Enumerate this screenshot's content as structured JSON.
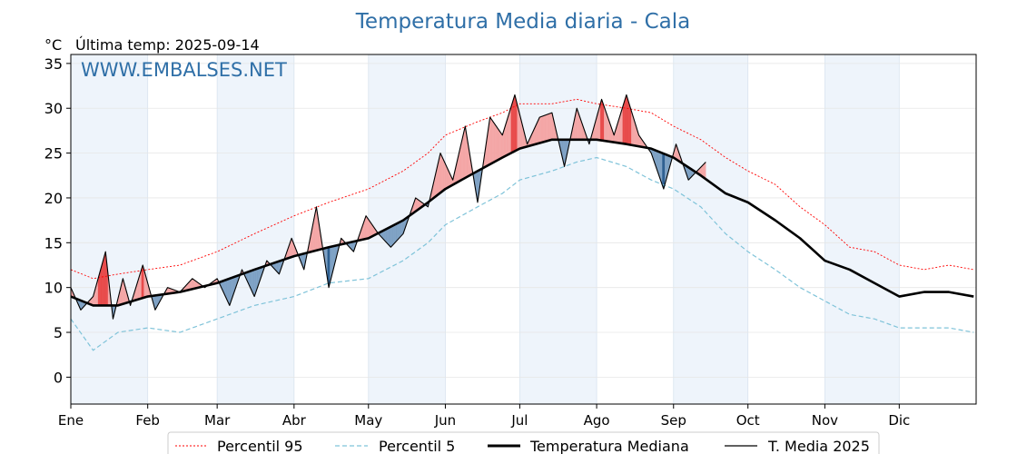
{
  "header": {
    "title": "Temperatura Media diaria - Cala",
    "unit": "°C",
    "last_temp": "Última temp: 2025-09-14",
    "watermark": "WWW.EMBALSES.NET"
  },
  "legend": {
    "p95": "Percentil 95",
    "p5": "Percentil 5",
    "median": "Temperatura Mediana",
    "current": "T. Media 2025"
  },
  "colors": {
    "p95": "#ff0000",
    "p5": "#7fc3d9",
    "median": "#000000",
    "current": "#000000",
    "above_fill": "#f4a6a6",
    "above_strong": "#e84a4a",
    "below_fill": "#7ea1c4",
    "below_strong": "#2a5d8f",
    "month_band": "#eef4fb",
    "title": "#2f6fa7"
  },
  "chart_data": {
    "type": "line",
    "title": "Temperatura Media diaria - Cala",
    "ylabel": "°C",
    "ylim": [
      -3,
      36
    ],
    "xlim": [
      1,
      366
    ],
    "yticks": [
      0,
      5,
      10,
      15,
      20,
      25,
      30,
      35
    ],
    "months": [
      "Ene",
      "Feb",
      "Mar",
      "Abr",
      "May",
      "Jun",
      "Jul",
      "Ago",
      "Sep",
      "Oct",
      "Nov",
      "Dic"
    ],
    "month_start_days": [
      1,
      32,
      60,
      91,
      121,
      152,
      182,
      213,
      244,
      274,
      305,
      335
    ],
    "grid": true,
    "legend_position": "bottom",
    "series": [
      {
        "name": "Percentil 95",
        "style": "dotted",
        "x": [
          1,
          10,
          20,
          32,
          45,
          60,
          75,
          91,
          105,
          121,
          135,
          145,
          152,
          165,
          175,
          182,
          195,
          205,
          213,
          225,
          235,
          244,
          255,
          265,
          274,
          285,
          295,
          305,
          315,
          325,
          335,
          345,
          355,
          365
        ],
        "y": [
          12,
          11,
          11.5,
          12,
          12.5,
          14,
          16,
          18,
          19.5,
          21,
          23,
          25,
          27,
          28.5,
          29.5,
          30.5,
          30.5,
          31,
          30.5,
          30,
          29.5,
          28,
          26.5,
          24.5,
          23,
          21.5,
          19,
          17,
          14.5,
          14,
          12.5,
          12,
          12.5,
          12
        ]
      },
      {
        "name": "Percentil 5",
        "style": "dashed",
        "x": [
          1,
          10,
          20,
          32,
          45,
          60,
          75,
          91,
          105,
          121,
          135,
          145,
          152,
          165,
          175,
          182,
          195,
          205,
          213,
          225,
          235,
          244,
          255,
          265,
          274,
          285,
          295,
          305,
          315,
          325,
          335,
          345,
          355,
          365
        ],
        "y": [
          6.5,
          3,
          5,
          5.5,
          5,
          6.5,
          8,
          9,
          10.5,
          11,
          13,
          15,
          17,
          19,
          20.5,
          22,
          23,
          24,
          24.5,
          23.5,
          22,
          21,
          19,
          16,
          14,
          12,
          10,
          8.5,
          7,
          6.5,
          5.5,
          5.5,
          5.5,
          5
        ]
      },
      {
        "name": "Temperatura Mediana",
        "style": "solid-thick",
        "x": [
          1,
          10,
          20,
          32,
          45,
          60,
          75,
          91,
          105,
          121,
          135,
          145,
          152,
          165,
          175,
          182,
          195,
          205,
          213,
          225,
          235,
          244,
          255,
          265,
          274,
          285,
          295,
          305,
          315,
          325,
          335,
          345,
          355,
          365
        ],
        "y": [
          9,
          8,
          8,
          9,
          9.5,
          10.5,
          12,
          13.5,
          14.5,
          15.5,
          17.5,
          19.5,
          21,
          23,
          24.5,
          25.5,
          26.5,
          26.5,
          26.5,
          26,
          25.5,
          24.5,
          22.5,
          20.5,
          19.5,
          17.5,
          15.5,
          13,
          12,
          10.5,
          9,
          9.5,
          9.5,
          9
        ]
      },
      {
        "name": "T. Media 2025",
        "style": "solid-thin",
        "x": [
          1,
          5,
          10,
          15,
          18,
          22,
          25,
          30,
          35,
          40,
          45,
          50,
          55,
          60,
          65,
          70,
          75,
          80,
          85,
          90,
          95,
          100,
          105,
          110,
          115,
          120,
          125,
          130,
          135,
          140,
          145,
          150,
          155,
          160,
          165,
          170,
          175,
          180,
          185,
          190,
          195,
          200,
          205,
          210,
          215,
          220,
          225,
          230,
          235,
          240,
          245,
          250,
          257
        ],
        "y": [
          10,
          7.5,
          9,
          14,
          6.5,
          11,
          8,
          12.5,
          7.5,
          10,
          9.5,
          11,
          10,
          11,
          8,
          12,
          9,
          13,
          11.5,
          15.5,
          12,
          19,
          10,
          15.5,
          14,
          18,
          16,
          14.5,
          16,
          20,
          19,
          25,
          22,
          28,
          19.5,
          29,
          27,
          31.5,
          26,
          29,
          29.5,
          23.5,
          30,
          26,
          31,
          27,
          31.5,
          27,
          25,
          21,
          26,
          22,
          24
        ]
      }
    ]
  }
}
